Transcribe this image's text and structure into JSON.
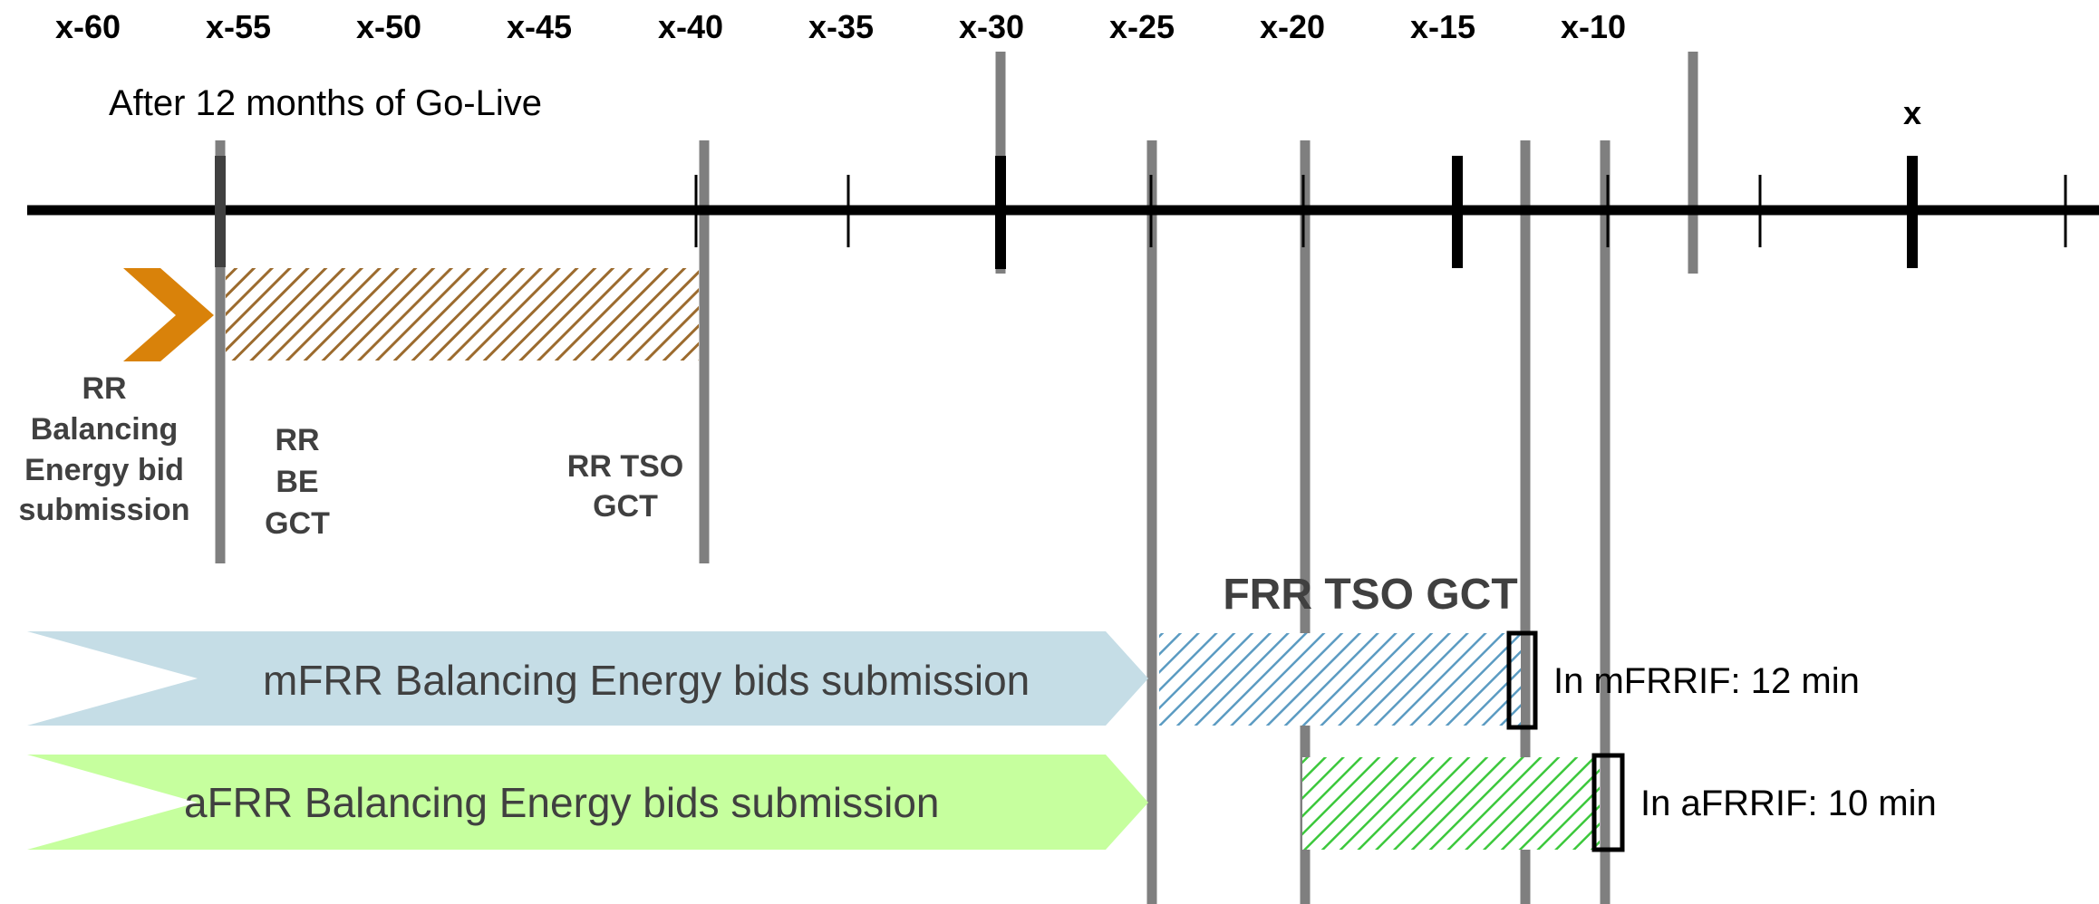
{
  "timeline": {
    "tick_labels": [
      "x-60",
      "x-55",
      "x-50",
      "x-45",
      "x-40",
      "x-35",
      "x-30",
      "x-25",
      "x-20",
      "x-15",
      "x-10"
    ],
    "end_label": "x",
    "phase_note": "After 12 months of Go-Live"
  },
  "rr": {
    "submission_label": [
      "RR",
      "Balancing",
      "Energy bid",
      "submission"
    ],
    "be_gct_label": [
      "RR",
      "BE",
      "GCT"
    ],
    "tso_gct_label": [
      "RR TSO",
      "GCT"
    ],
    "colors": {
      "chevron": "#D9820A",
      "hatch": "#9C6B2E"
    }
  },
  "frr": {
    "tso_gct_label": "FRR TSO GCT",
    "mfrr": {
      "label": "mFRR Balancing Energy bids submission",
      "interval": "In mFRRIF: 12 min",
      "color": "#C5DDE6",
      "hatch_color": "#5B9BC2"
    },
    "afrr": {
      "label": "aFRR Balancing Energy bids submission",
      "interval": "In aFRRIF: 10 min",
      "color": "#C6FF9E",
      "hatch_color": "#3CC83C"
    }
  }
}
